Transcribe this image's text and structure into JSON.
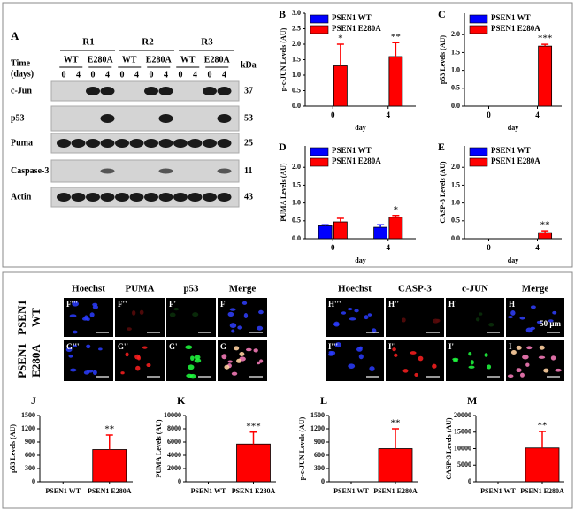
{
  "blot": {
    "panel": "A",
    "replicates": [
      "R1",
      "R2",
      "R3"
    ],
    "time_label": [
      "Time",
      "(days)"
    ],
    "groups": [
      "WT",
      "E280A",
      "WT",
      "E280A",
      "WT",
      "E280A"
    ],
    "lanes": [
      "0",
      "4",
      "0",
      "4",
      "0",
      "4",
      "0",
      "4",
      "0",
      "4",
      "0",
      "4"
    ],
    "kda_label": "kDa",
    "rows": [
      {
        "name": "c-Jun",
        "kda": 37
      },
      {
        "name": "p53",
        "kda": 53
      },
      {
        "name": "Puma",
        "kda": 25
      },
      {
        "name": "Caspase-3",
        "kda": 11
      },
      {
        "name": "Actin",
        "kda": 43
      }
    ]
  },
  "chart_data": [
    {
      "type": "bar",
      "panel": "B",
      "y_label": "p-c-JUN Levels (AU)",
      "x_label": "day",
      "categories": [
        "0",
        "4"
      ],
      "series": [
        {
          "name": "PSEN1 WT",
          "color": "#0000ff",
          "values": [
            null,
            null
          ],
          "errors": [
            null,
            null
          ],
          "annotations": [
            null,
            null
          ]
        },
        {
          "name": "PSEN1 E280A",
          "color": "#ff0000",
          "values": [
            1.3,
            1.6
          ],
          "errors": [
            0.7,
            0.45
          ],
          "annotations": [
            "*",
            "**"
          ]
        }
      ],
      "ylim": [
        0,
        3.0
      ],
      "yticks": [
        {
          "value": 0,
          "label": "0.0"
        },
        0.5,
        {
          "value": 1,
          "label": "1.0"
        },
        1.5,
        {
          "value": 2,
          "label": "2.0"
        },
        2.5,
        {
          "value": 3,
          "label": "3.0"
        }
      ],
      "legend": "upper left"
    },
    {
      "type": "bar",
      "panel": "C",
      "y_label": "p53 Levels (AU)",
      "x_label": "day",
      "categories": [
        "0",
        "4"
      ],
      "series": [
        {
          "name": "PSEN1 WT",
          "color": "#0000ff",
          "values": [
            null,
            null
          ],
          "errors": [
            null,
            null
          ],
          "annotations": [
            null,
            null
          ]
        },
        {
          "name": "PSEN1 E280A",
          "color": "#ff0000",
          "values": [
            null,
            1.68
          ],
          "errors": [
            null,
            0.05
          ],
          "annotations": [
            null,
            "***"
          ]
        }
      ],
      "ylim": [
        0,
        2.6
      ],
      "yticks": [
        {
          "value": 0,
          "label": "0.0"
        },
        0.5,
        {
          "value": 1,
          "label": "1.0"
        },
        1.5,
        {
          "value": 2,
          "label": "2.0"
        }
      ],
      "legend": "upper left"
    },
    {
      "type": "bar",
      "panel": "D",
      "y_label": "PUMA Levels (AU)",
      "x_label": "day",
      "categories": [
        "0",
        "4"
      ],
      "series": [
        {
          "name": "PSEN1 WT",
          "color": "#0000ff",
          "values": [
            0.36,
            0.32
          ],
          "errors": [
            0.03,
            0.07
          ],
          "annotations": [
            null,
            null
          ]
        },
        {
          "name": "PSEN1 E280A",
          "color": "#ff0000",
          "values": [
            0.47,
            0.6
          ],
          "errors": [
            0.1,
            0.05
          ],
          "annotations": [
            null,
            "*"
          ]
        }
      ],
      "ylim": [
        0,
        2.6
      ],
      "yticks": [
        {
          "value": 0,
          "label": "0.0"
        },
        0.5,
        {
          "value": 1,
          "label": "1.0"
        },
        1.5,
        {
          "value": 2,
          "label": "2.0"
        }
      ],
      "legend": "upper left"
    },
    {
      "type": "bar",
      "panel": "E",
      "y_label": "CASP-3 Levels (AU)",
      "x_label": "day",
      "categories": [
        "0",
        "4"
      ],
      "series": [
        {
          "name": "PSEN1 WT",
          "color": "#0000ff",
          "values": [
            null,
            null
          ],
          "errors": [
            null,
            null
          ],
          "annotations": [
            null,
            null
          ]
        },
        {
          "name": "PSEN1 E280A",
          "color": "#ff0000",
          "values": [
            null,
            0.17
          ],
          "errors": [
            null,
            0.05
          ],
          "annotations": [
            null,
            "**"
          ]
        }
      ],
      "ylim": [
        0,
        2.6
      ],
      "yticks": [
        {
          "value": 0,
          "label": "0.0"
        },
        0.5,
        {
          "value": 1,
          "label": "1.0"
        },
        1.5,
        {
          "value": 2,
          "label": "2.0"
        }
      ],
      "legend": "upper left"
    },
    {
      "type": "bar",
      "panel": "J",
      "y_label": "p53 Levels (AU)",
      "categories": [
        "PSEN1 WT",
        "PSEN1 E280A"
      ],
      "series": [
        {
          "color": "#ff0000",
          "values": [
            null,
            730
          ],
          "errors": [
            null,
            330
          ],
          "annotations": [
            null,
            "**"
          ]
        }
      ],
      "ylim": [
        0,
        1500
      ],
      "yticks": [
        0,
        300,
        600,
        900,
        1200,
        1500
      ]
    },
    {
      "type": "bar",
      "panel": "K",
      "y_label": "PUMA Levels (AU)",
      "categories": [
        "PSEN1 WT",
        "PSEN1 E280A"
      ],
      "series": [
        {
          "color": "#ff0000",
          "values": [
            null,
            5700
          ],
          "errors": [
            null,
            1800
          ],
          "annotations": [
            null,
            "***"
          ]
        }
      ],
      "ylim": [
        0,
        10000
      ],
      "yticks": [
        0,
        2000,
        4000,
        6000,
        8000,
        10000
      ]
    },
    {
      "type": "bar",
      "panel": "L",
      "y_label": "p-c-JUN Levels (AU)",
      "categories": [
        "PSEN1 WT",
        "PSEN1 E280A"
      ],
      "series": [
        {
          "color": "#ff0000",
          "values": [
            null,
            750
          ],
          "errors": [
            null,
            450
          ],
          "annotations": [
            null,
            "**"
          ]
        }
      ],
      "ylim": [
        0,
        1500
      ],
      "yticks": [
        0,
        300,
        600,
        900,
        1200,
        1500
      ]
    },
    {
      "type": "bar",
      "panel": "M",
      "y_label": "CASP-3 Levels (AU)",
      "categories": [
        "PSEN1 WT",
        "PSEN1 E280A"
      ],
      "series": [
        {
          "color": "#ff0000",
          "values": [
            null,
            10200
          ],
          "errors": [
            null,
            5000
          ],
          "annotations": [
            null,
            "**"
          ]
        }
      ],
      "ylim": [
        0,
        20000
      ],
      "yticks": [
        0,
        5000,
        10000,
        15000,
        20000
      ]
    }
  ],
  "microscopy": {
    "groups": [
      {
        "columns": [
          "Hoechst",
          "PUMA",
          "p53",
          "Merge"
        ],
        "panels": [
          [
            "F'''",
            "F''",
            "F'",
            "F"
          ],
          [
            "G'''",
            "G''",
            "G'",
            "G"
          ]
        ]
      },
      {
        "columns": [
          "Hoechst",
          "CASP-3",
          "c-JUN",
          "Merge"
        ],
        "panels": [
          [
            "H'''",
            "H''",
            "H'",
            "H"
          ],
          [
            "I'''",
            "I''",
            "I'",
            "I"
          ]
        ]
      }
    ],
    "row_labels": [
      [
        "PSEN1",
        "WT"
      ],
      [
        "PSEN1",
        "E280A"
      ]
    ],
    "scale_label": "50 μm"
  }
}
